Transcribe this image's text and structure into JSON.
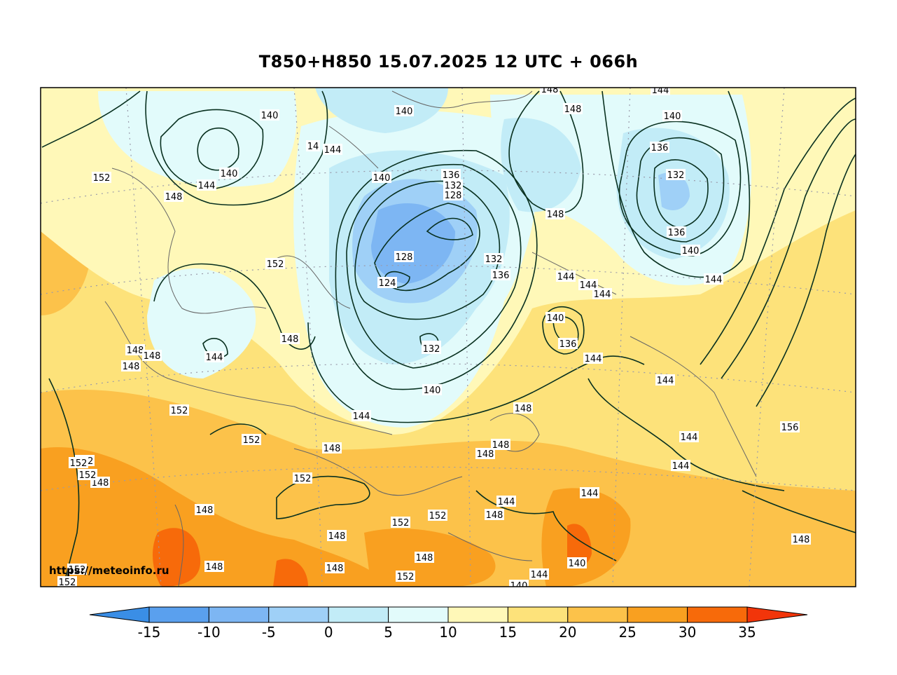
{
  "title": "T850+H850 15.07.2025 12 UTC + 066h",
  "watermark": "https://meteoinfo.ru",
  "colorbar": {
    "ticks": [
      "-15",
      "-10",
      "-5",
      "0",
      "5",
      "10",
      "15",
      "20",
      "25",
      "30",
      "35"
    ],
    "colors": [
      "#3a8ee6",
      "#5aa0ee",
      "#7db6f3",
      "#9fd0f7",
      "#c2ecf7",
      "#e2fbfb",
      "#fff8b8",
      "#fde27a",
      "#fcc24a",
      "#f9a020",
      "#f76a0a",
      "#f2350a"
    ],
    "colors_note": "arrow-min, bins -15..35, arrow-max"
  },
  "contour_labels": [
    "140",
    "140",
    "148",
    "148",
    "144",
    "14",
    "144",
    "140",
    "152",
    "140",
    "144",
    "148",
    "140",
    "136",
    "132",
    "128",
    "136",
    "132",
    "140",
    "136",
    "132",
    "148",
    "152",
    "128",
    "124",
    "132",
    "136",
    "144",
    "144",
    "144",
    "148",
    "144",
    "140",
    "136",
    "144",
    "144",
    "148",
    "148",
    "148",
    "144",
    "132",
    "140",
    "148",
    "144",
    "148",
    "148",
    "148",
    "152",
    "152",
    "152",
    "152",
    "144",
    "148",
    "144",
    "152",
    "152",
    "152",
    "156",
    "144",
    "144",
    "148",
    "148",
    "148",
    "148",
    "148",
    "148",
    "152",
    "144",
    "140",
    "140",
    "148",
    "152",
    "152",
    "152"
  ]
}
